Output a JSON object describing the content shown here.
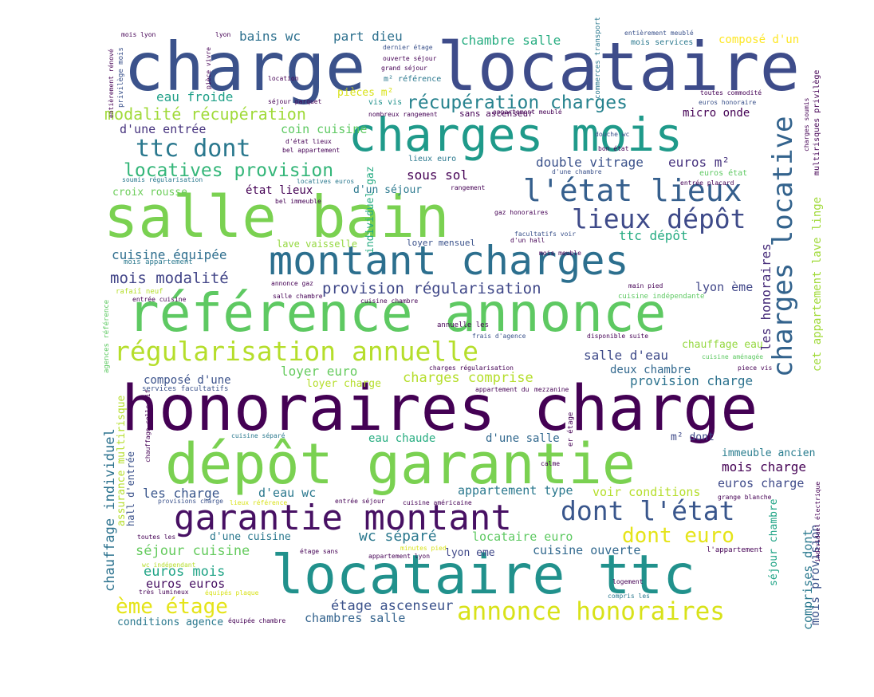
{
  "palette": {
    "dark_purple": "#440154",
    "indigo": "#3b3f8e",
    "blue": "#31668e",
    "steel": "#2c6f8e",
    "teal": "#21918c",
    "green_teal": "#26a984",
    "green": "#5ec962",
    "light_green": "#7ad151",
    "yellow_green": "#b5de2b",
    "yellow": "#e8e419"
  },
  "words": [
    {
      "text": "charge",
      "color": "#3b528b"
    },
    {
      "text": "locataire",
      "color": "#3e4c8a"
    },
    {
      "text": "charges mois",
      "color": "#1f9a8a"
    },
    {
      "text": "salle bain",
      "color": "#7ad151"
    },
    {
      "text": "montant charges",
      "color": "#2c6f8e"
    },
    {
      "text": "référence annonce",
      "color": "#5ec962"
    },
    {
      "text": "honoraires charge",
      "color": "#440154"
    },
    {
      "text": "dépôt garantie",
      "color": "#7ad151"
    },
    {
      "text": "locataire ttc",
      "color": "#21918c"
    },
    {
      "text": "garantie montant",
      "color": "#471063"
    },
    {
      "text": "régularisation annuelle",
      "color": "#b5de2b"
    },
    {
      "text": "l'état lieux",
      "color": "#355f8d"
    },
    {
      "text": "lieux dépôt",
      "color": "#3e4a89"
    },
    {
      "text": "charges locative",
      "color": "#33638d"
    },
    {
      "text": "annonce honoraires",
      "color": "#d8e219"
    },
    {
      "text": "dont l'état",
      "color": "#39568c"
    },
    {
      "text": "ttc dont",
      "color": "#2a788e"
    },
    {
      "text": "récupération charges",
      "color": "#26828e"
    },
    {
      "text": "locatives provision",
      "color": "#34b679"
    },
    {
      "text": "modalité récupération",
      "color": "#a0da39"
    },
    {
      "text": "provision régularisation",
      "color": "#3f4788"
    },
    {
      "text": "dont euro",
      "color": "#e5e419"
    },
    {
      "text": "ème étage",
      "color": "#e5e419"
    },
    {
      "text": "mois modalité",
      "color": "#414487"
    },
    {
      "text": "cuisine équipée",
      "color": "#2e6e8e"
    },
    {
      "text": "bains wc",
      "color": "#2d708e"
    },
    {
      "text": "part dieu",
      "color": "#2d708e"
    },
    {
      "text": "chambre salle",
      "color": "#27ad81"
    },
    {
      "text": "composé d'un",
      "color": "#fde725"
    },
    {
      "text": "eau froide",
      "color": "#1fa088"
    },
    {
      "text": "d'une entrée",
      "color": "#46337e"
    },
    {
      "text": "coin cuisine",
      "color": "#5ec962"
    },
    {
      "text": "croix rousse",
      "color": "#6ccd5a"
    },
    {
      "text": "état lieux",
      "color": "#440154"
    },
    {
      "text": "sous sol",
      "color": "#440154"
    },
    {
      "text": "double vitrage",
      "color": "#3b528b"
    },
    {
      "text": "euros m²",
      "color": "#46327e"
    },
    {
      "text": "d'un séjour",
      "color": "#2a788e"
    },
    {
      "text": "ttc dépôt",
      "color": "#25ab82"
    },
    {
      "text": "individuel gaz",
      "color": "#25ab82"
    },
    {
      "text": "lave vaisselle",
      "color": "#95d840"
    },
    {
      "text": "loyer mensuel",
      "color": "#3b528b"
    },
    {
      "text": "salle d'eau",
      "color": "#3e4a89"
    },
    {
      "text": "deux chambre",
      "color": "#31688e"
    },
    {
      "text": "chauffage eau",
      "color": "#95d840"
    },
    {
      "text": "lyon ème",
      "color": "#404688"
    },
    {
      "text": "composé d'une",
      "color": "#3b528b"
    },
    {
      "text": "loyer euro",
      "color": "#65cb5e"
    },
    {
      "text": "loyer charge",
      "color": "#b5de2b"
    },
    {
      "text": "charges comprise",
      "color": "#b5de2b"
    },
    {
      "text": "provision charge",
      "color": "#2c728e"
    },
    {
      "text": "chauffage individuel",
      "color": "#2c728e"
    },
    {
      "text": "assurance multirisque",
      "color": "#b5de2b"
    },
    {
      "text": "eau chaude",
      "color": "#27ad81"
    },
    {
      "text": "d'une salle",
      "color": "#31688e"
    },
    {
      "text": "m² dont",
      "color": "#3e4a89"
    },
    {
      "text": "immeuble ancien",
      "color": "#287c8e"
    },
    {
      "text": "mois charge",
      "color": "#440154"
    },
    {
      "text": "euros charge",
      "color": "#3e4a89"
    },
    {
      "text": "les charge",
      "color": "#39568c"
    },
    {
      "text": "d'eau wc",
      "color": "#2a788e"
    },
    {
      "text": "appartement type",
      "color": "#2a788e"
    },
    {
      "text": "voir conditions",
      "color": "#b5de2b"
    },
    {
      "text": "wc séparé",
      "color": "#2a788e"
    },
    {
      "text": "locataire euro",
      "color": "#5ec962"
    },
    {
      "text": "séjour cuisine",
      "color": "#65cb5e"
    },
    {
      "text": "cuisine ouverte",
      "color": "#31688e"
    },
    {
      "text": "lyon eme",
      "color": "#3f4788"
    },
    {
      "text": "euros mois",
      "color": "#20a486"
    },
    {
      "text": "euros euros",
      "color": "#471063"
    },
    {
      "text": "étage ascenseur",
      "color": "#3b528b"
    },
    {
      "text": "chambres salle",
      "color": "#33638d"
    },
    {
      "text": "conditions agence",
      "color": "#2a788e"
    },
    {
      "text": "d'une cuisine",
      "color": "#2a788e"
    },
    {
      "text": "les honoraires",
      "color": "#472c7a"
    },
    {
      "text": "cet appartement lave linge",
      "color": "#a0da39"
    },
    {
      "text": "mois provision",
      "color": "#3b528b"
    },
    {
      "text": "comprises dont",
      "color": "#2a788e"
    },
    {
      "text": "séjour chambre",
      "color": "#20a486"
    },
    {
      "text": "mois services",
      "color": "#2a788e"
    },
    {
      "text": "m² référence",
      "color": "#2a788e"
    },
    {
      "text": "pièces m²",
      "color": "#d8e219"
    },
    {
      "text": "sans ascenseur",
      "color": "#440154"
    },
    {
      "text": "micro onde",
      "color": "#440154"
    },
    {
      "text": "lieux euro",
      "color": "#2a788e"
    },
    {
      "text": "euros état",
      "color": "#5ec962"
    },
    {
      "text": "multirisques privilège",
      "color": "#440154"
    },
    {
      "text": "mois lyon",
      "color": "#440154"
    },
    {
      "text": "lyon",
      "color": "#440154"
    },
    {
      "text": "entièrement meublé",
      "color": "#3b528b"
    },
    {
      "text": "dernier étage",
      "color": "#3b528b"
    },
    {
      "text": "ouverte séjour",
      "color": "#440154"
    },
    {
      "text": "grand séjour",
      "color": "#440154"
    },
    {
      "text": "toutes commodité",
      "color": "#440154"
    },
    {
      "text": "euros honoraire",
      "color": "#3b528b"
    },
    {
      "text": "bon état",
      "color": "#440154"
    },
    {
      "text": "douche wc",
      "color": "#3b528b"
    },
    {
      "text": "bel appartement",
      "color": "#440154"
    },
    {
      "text": "d'état lieux",
      "color": "#440154"
    },
    {
      "text": "séjour parquet",
      "color": "#440154"
    },
    {
      "text": "vis vis",
      "color": "#21918c"
    },
    {
      "text": "rangement",
      "color": "#440154"
    },
    {
      "text": "d'une chambre",
      "color": "#3b528b"
    },
    {
      "text": "entrée placard",
      "color": "#440154"
    },
    {
      "text": "soumis régularisation",
      "color": "#2a788e"
    },
    {
      "text": "locatives euros",
      "color": "#2a788e"
    },
    {
      "text": "bel immeuble",
      "color": "#440154"
    },
    {
      "text": "gaz honoraires",
      "color": "#440154"
    },
    {
      "text": "facultatifs voir",
      "color": "#3b528b"
    },
    {
      "text": "d'un hall",
      "color": "#440154"
    },
    {
      "text": "annonce gaz",
      "color": "#440154"
    },
    {
      "text": "mois appartement",
      "color": "#2a788e"
    },
    {
      "text": "rafaiî neuf",
      "color": "#b5de2b"
    },
    {
      "text": "entrée cuisine",
      "color": "#440154"
    },
    {
      "text": "salle chambre",
      "color": "#440154"
    },
    {
      "text": "cuisine chambre",
      "color": "#440154"
    },
    {
      "text": "cuisine indépendante",
      "color": "#5ec962"
    },
    {
      "text": "main pied",
      "color": "#440154"
    },
    {
      "text": "annuelle les",
      "color": "#440154"
    },
    {
      "text": "frais d'agence",
      "color": "#3b528b"
    },
    {
      "text": "disponible suite",
      "color": "#440154"
    },
    {
      "text": "agences référence",
      "color": "#5ec962"
    },
    {
      "text": "charges régularisation",
      "color": "#440154"
    },
    {
      "text": "services facultatifs",
      "color": "#3b528b"
    },
    {
      "text": "appartement du",
      "color": "#440154"
    },
    {
      "text": "mezzanine",
      "color": "#440154"
    },
    {
      "text": "er étage",
      "color": "#440154"
    },
    {
      "text": "chauffage collectif",
      "color": "#440154"
    },
    {
      "text": "cuisine séparé",
      "color": "#2a788e"
    },
    {
      "text": "hall d'entrée",
      "color": "#3b528b"
    },
    {
      "text": "provisions charge",
      "color": "#3b528b"
    },
    {
      "text": "lieux référence",
      "color": "#d8e219"
    },
    {
      "text": "entrée séjour",
      "color": "#440154"
    },
    {
      "text": "cuisine américaine",
      "color": "#440154"
    },
    {
      "text": "étage sans",
      "color": "#440154"
    },
    {
      "text": "appartement lyon",
      "color": "#440154"
    },
    {
      "text": "minutes pied",
      "color": "#d8e219"
    },
    {
      "text": "l'appartement",
      "color": "#440154"
    },
    {
      "text": "individuel électrique",
      "color": "#440154"
    },
    {
      "text": "logement",
      "color": "#440154"
    },
    {
      "text": "compris les",
      "color": "#2a788e"
    },
    {
      "text": "wc indépendant",
      "color": "#b5de2b"
    },
    {
      "text": "très lumineux",
      "color": "#440154"
    },
    {
      "text": "équipés plaque",
      "color": "#d8e219"
    },
    {
      "text": "équipée chambre",
      "color": "#440154"
    },
    {
      "text": "toutes les",
      "color": "#440154"
    },
    {
      "text": "entièrement rénové",
      "color": "#440154"
    },
    {
      "text": "privilège mois",
      "color": "#3b528b"
    },
    {
      "text": "pièce vivre",
      "color": "#440154"
    },
    {
      "text": "location",
      "color": "#440154"
    },
    {
      "text": "nombreux rangement",
      "color": "#440154"
    },
    {
      "text": "appartement meublé",
      "color": "#440154"
    },
    {
      "text": "commerces transport",
      "color": "#2a788e"
    },
    {
      "text": "charges soumis",
      "color": "#440154"
    },
    {
      "text": "mois meuble",
      "color": "#440154"
    },
    {
      "text": "calme",
      "color": "#440154"
    },
    {
      "text": "grange blanche",
      "color": "#440154"
    },
    {
      "text": "piece vis",
      "color": "#440154"
    },
    {
      "text": "cuisine aménagée",
      "color": "#5ec962"
    }
  ]
}
